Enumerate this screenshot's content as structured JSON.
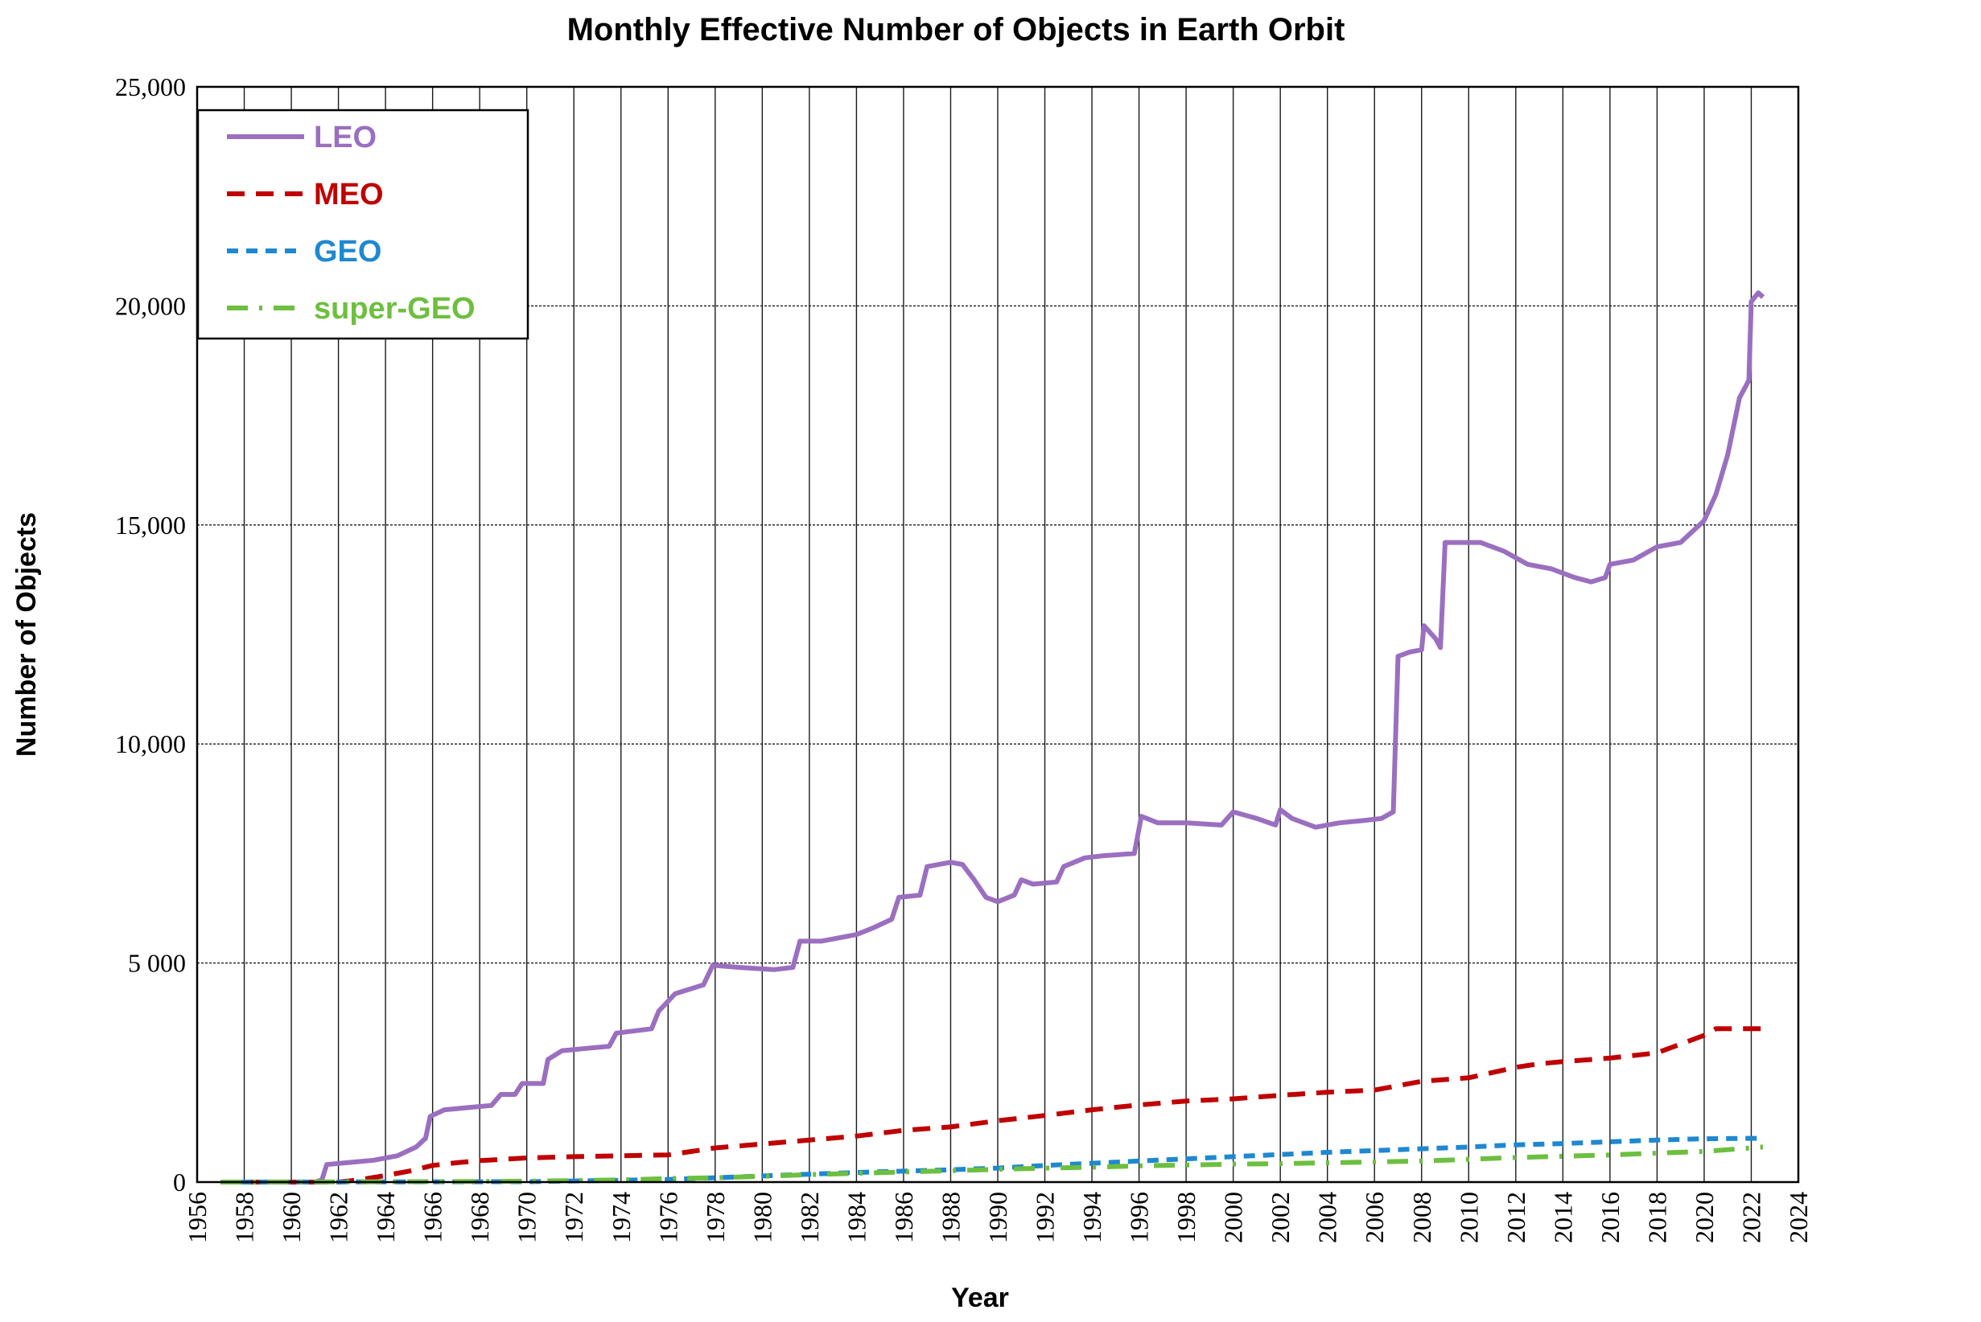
{
  "chart_data": {
    "type": "line",
    "title": "Monthly Effective Number of Objects in Earth Orbit",
    "xlabel": "Year",
    "ylabel": "Number of Objects",
    "xlim": [
      1956,
      2024
    ],
    "ylim": [
      0,
      25000
    ],
    "grid": true,
    "legend_position": "top-left",
    "x_ticks": [
      "1956",
      "1958",
      "1960",
      "1962",
      "1964",
      "1966",
      "1968",
      "1970",
      "1972",
      "1974",
      "1976",
      "1978",
      "1980",
      "1982",
      "1984",
      "1986",
      "1988",
      "1990",
      "1992",
      "1994",
      "1996",
      "1998",
      "2000",
      "2002",
      "2004",
      "2006",
      "2008",
      "2010",
      "2012",
      "2014",
      "2016",
      "2018",
      "2020",
      "2022",
      "2024"
    ],
    "y_ticks": [
      {
        "value": 0,
        "label": "0"
      },
      {
        "value": 5000,
        "label": "5 000"
      },
      {
        "value": 10000,
        "label": "10,000"
      },
      {
        "value": 15000,
        "label": "15,000"
      },
      {
        "value": 20000,
        "label": "20,000"
      },
      {
        "value": 25000,
        "label": "25,000"
      }
    ],
    "series": [
      {
        "name": "LEO",
        "color": "#9b6fc0",
        "style": "solid",
        "points": [
          [
            1957.0,
            0
          ],
          [
            1961.0,
            0
          ],
          [
            1961.3,
            50
          ],
          [
            1961.5,
            400
          ],
          [
            1962.5,
            450
          ],
          [
            1963.5,
            500
          ],
          [
            1964.5,
            600
          ],
          [
            1965.3,
            800
          ],
          [
            1965.7,
            1000
          ],
          [
            1965.9,
            1500
          ],
          [
            1966.5,
            1650
          ],
          [
            1967.5,
            1700
          ],
          [
            1968.5,
            1750
          ],
          [
            1968.9,
            2000
          ],
          [
            1969.5,
            2000
          ],
          [
            1969.8,
            2250
          ],
          [
            1970.7,
            2250
          ],
          [
            1970.9,
            2800
          ],
          [
            1971.5,
            3000
          ],
          [
            1972.5,
            3050
          ],
          [
            1973.5,
            3100
          ],
          [
            1973.8,
            3400
          ],
          [
            1975.3,
            3500
          ],
          [
            1975.6,
            3900
          ],
          [
            1976.3,
            4300
          ],
          [
            1977.5,
            4500
          ],
          [
            1977.9,
            4950
          ],
          [
            1979.0,
            4900
          ],
          [
            1980.5,
            4850
          ],
          [
            1981.3,
            4900
          ],
          [
            1981.6,
            5500
          ],
          [
            1982.5,
            5500
          ],
          [
            1984.0,
            5650
          ],
          [
            1984.7,
            5800
          ],
          [
            1985.5,
            6000
          ],
          [
            1985.8,
            6500
          ],
          [
            1986.7,
            6550
          ],
          [
            1987.0,
            7200
          ],
          [
            1988.0,
            7300
          ],
          [
            1988.5,
            7250
          ],
          [
            1989.0,
            6900
          ],
          [
            1989.5,
            6500
          ],
          [
            1990.0,
            6400
          ],
          [
            1990.7,
            6550
          ],
          [
            1991.0,
            6900
          ],
          [
            1991.5,
            6800
          ],
          [
            1992.5,
            6850
          ],
          [
            1992.8,
            7200
          ],
          [
            1993.7,
            7400
          ],
          [
            1994.5,
            7450
          ],
          [
            1995.8,
            7500
          ],
          [
            1996.1,
            8350
          ],
          [
            1996.8,
            8200
          ],
          [
            1998.0,
            8200
          ],
          [
            1999.5,
            8150
          ],
          [
            2000.0,
            8450
          ],
          [
            2001.0,
            8300
          ],
          [
            2001.8,
            8150
          ],
          [
            2002.0,
            8500
          ],
          [
            2002.5,
            8300
          ],
          [
            2003.5,
            8100
          ],
          [
            2004.5,
            8200
          ],
          [
            2005.5,
            8250
          ],
          [
            2006.3,
            8300
          ],
          [
            2006.8,
            8450
          ],
          [
            2007.0,
            12000
          ],
          [
            2007.5,
            12100
          ],
          [
            2008.0,
            12150
          ],
          [
            2008.1,
            12700
          ],
          [
            2008.6,
            12400
          ],
          [
            2008.8,
            12200
          ],
          [
            2009.0,
            14600
          ],
          [
            2010.5,
            14600
          ],
          [
            2011.5,
            14400
          ],
          [
            2012.5,
            14100
          ],
          [
            2013.5,
            14000
          ],
          [
            2014.5,
            13800
          ],
          [
            2015.2,
            13700
          ],
          [
            2015.8,
            13800
          ],
          [
            2016.0,
            14100
          ],
          [
            2017.0,
            14200
          ],
          [
            2018.0,
            14500
          ],
          [
            2019.0,
            14600
          ],
          [
            2020.0,
            15100
          ],
          [
            2020.5,
            15700
          ],
          [
            2021.0,
            16600
          ],
          [
            2021.5,
            17900
          ],
          [
            2021.9,
            18300
          ],
          [
            2022.0,
            20100
          ],
          [
            2022.3,
            20300
          ],
          [
            2022.5,
            20200
          ]
        ]
      },
      {
        "name": "MEO",
        "color": "#c00000",
        "style": "dashed",
        "points": [
          [
            1957.0,
            0
          ],
          [
            1962.0,
            0
          ],
          [
            1963.0,
            60
          ],
          [
            1964.0,
            150
          ],
          [
            1965.0,
            250
          ],
          [
            1966.0,
            380
          ],
          [
            1967.0,
            440
          ],
          [
            1968.0,
            490
          ],
          [
            1970.0,
            550
          ],
          [
            1972.0,
            580
          ],
          [
            1974.0,
            600
          ],
          [
            1976.0,
            620
          ],
          [
            1977.0,
            700
          ],
          [
            1978.0,
            780
          ],
          [
            1980.0,
            870
          ],
          [
            1982.0,
            960
          ],
          [
            1984.0,
            1050
          ],
          [
            1986.0,
            1180
          ],
          [
            1988.0,
            1260
          ],
          [
            1990.0,
            1400
          ],
          [
            1992.0,
            1520
          ],
          [
            1994.0,
            1650
          ],
          [
            1996.0,
            1760
          ],
          [
            1998.0,
            1850
          ],
          [
            2000.0,
            1900
          ],
          [
            2002.0,
            1980
          ],
          [
            2004.0,
            2050
          ],
          [
            2006.0,
            2100
          ],
          [
            2008.0,
            2300
          ],
          [
            2010.0,
            2380
          ],
          [
            2012.0,
            2620
          ],
          [
            2013.0,
            2700
          ],
          [
            2014.0,
            2750
          ],
          [
            2016.0,
            2830
          ],
          [
            2018.0,
            2950
          ],
          [
            2019.0,
            3150
          ],
          [
            2020.0,
            3350
          ],
          [
            2020.5,
            3500
          ],
          [
            2022.5,
            3500
          ]
        ]
      },
      {
        "name": "GEO",
        "color": "#1e88d0",
        "style": "dotted-dash",
        "points": [
          [
            1957.0,
            0
          ],
          [
            1965.0,
            5
          ],
          [
            1970.0,
            10
          ],
          [
            1974.0,
            40
          ],
          [
            1976.0,
            60
          ],
          [
            1978.0,
            100
          ],
          [
            1980.0,
            140
          ],
          [
            1982.0,
            180
          ],
          [
            1984.0,
            220
          ],
          [
            1986.0,
            250
          ],
          [
            1988.0,
            280
          ],
          [
            1990.0,
            320
          ],
          [
            1992.0,
            380
          ],
          [
            1994.0,
            430
          ],
          [
            1996.0,
            480
          ],
          [
            1998.0,
            530
          ],
          [
            2000.0,
            580
          ],
          [
            2002.0,
            630
          ],
          [
            2004.0,
            680
          ],
          [
            2006.0,
            720
          ],
          [
            2008.0,
            760
          ],
          [
            2010.0,
            800
          ],
          [
            2012.0,
            850
          ],
          [
            2014.0,
            880
          ],
          [
            2016.0,
            920
          ],
          [
            2018.0,
            960
          ],
          [
            2020.0,
            990
          ],
          [
            2022.5,
            1000
          ]
        ]
      },
      {
        "name": "super-GEO",
        "color": "#6dbf3f",
        "style": "dash-dot",
        "points": [
          [
            1957.0,
            0
          ],
          [
            1966.0,
            10
          ],
          [
            1970.0,
            20
          ],
          [
            1974.0,
            50
          ],
          [
            1976.0,
            80
          ],
          [
            1978.0,
            100
          ],
          [
            1980.0,
            130
          ],
          [
            1982.0,
            170
          ],
          [
            1984.0,
            200
          ],
          [
            1986.0,
            230
          ],
          [
            1988.0,
            260
          ],
          [
            1990.0,
            290
          ],
          [
            1992.0,
            320
          ],
          [
            1994.0,
            340
          ],
          [
            1996.0,
            370
          ],
          [
            1998.0,
            390
          ],
          [
            2000.0,
            410
          ],
          [
            2002.0,
            420
          ],
          [
            2004.0,
            440
          ],
          [
            2006.0,
            460
          ],
          [
            2008.0,
            480
          ],
          [
            2010.0,
            520
          ],
          [
            2012.0,
            560
          ],
          [
            2014.0,
            590
          ],
          [
            2016.0,
            620
          ],
          [
            2018.0,
            660
          ],
          [
            2020.0,
            700
          ],
          [
            2022.5,
            800
          ]
        ]
      }
    ]
  }
}
